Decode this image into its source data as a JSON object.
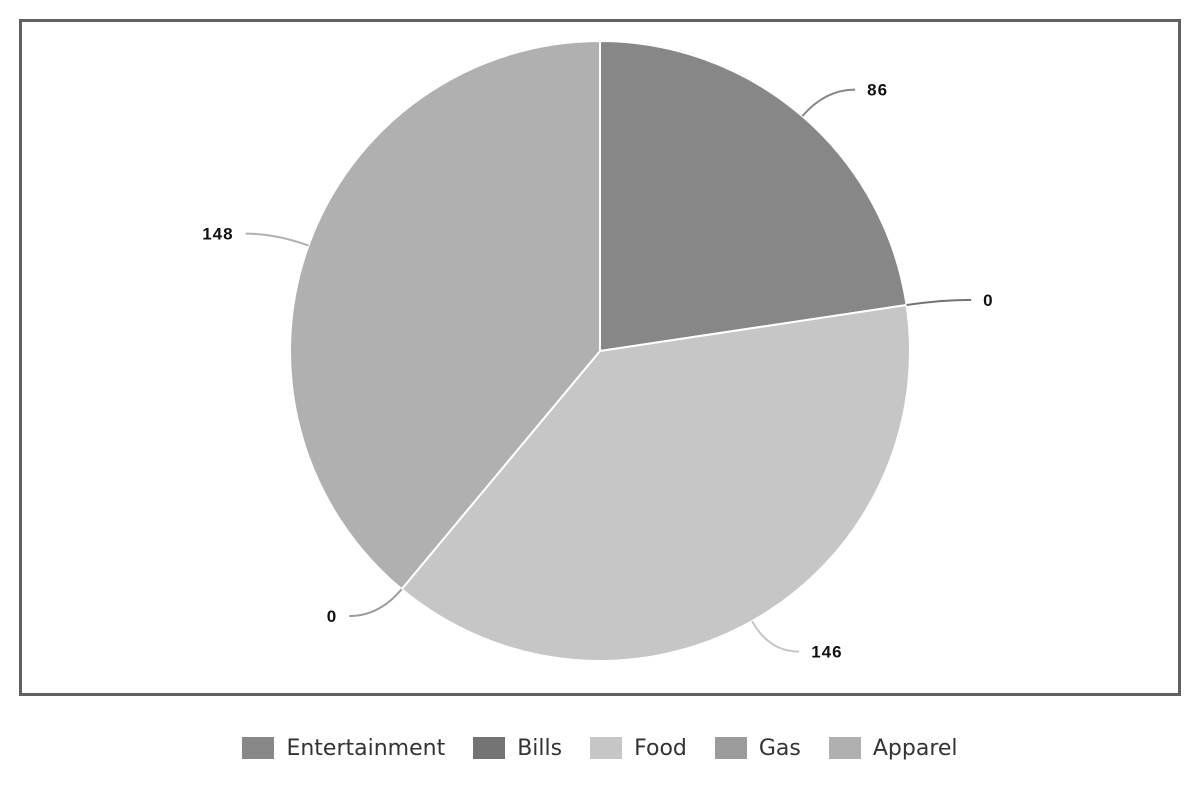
{
  "chart_data": {
    "type": "pie",
    "categories": [
      "Entertainment",
      "Bills",
      "Food",
      "Gas",
      "Apparel"
    ],
    "values": [
      86,
      0,
      146,
      0,
      148
    ],
    "data_labels": [
      "86",
      "0",
      "146",
      "0",
      "148"
    ],
    "colors": [
      "#878787",
      "#737373",
      "#c6c6c6",
      "#9b9b9b",
      "#b0b0b0"
    ],
    "legend_position": "bottom",
    "start_angle": "12 o'clock",
    "direction": "clockwise"
  }
}
